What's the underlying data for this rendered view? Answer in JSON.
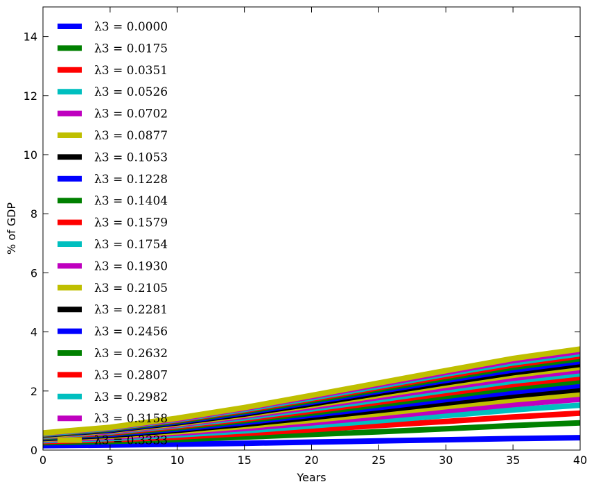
{
  "chart_data": {
    "type": "line",
    "xlabel": "Years",
    "ylabel": "% of GDP",
    "xlim": [
      0,
      40
    ],
    "ylim": [
      0,
      15
    ],
    "xticks": [
      "0",
      "5",
      "10",
      "15",
      "20",
      "25",
      "30",
      "35",
      "40"
    ],
    "yticks": [
      "0",
      "2",
      "4",
      "6",
      "8",
      "10",
      "12",
      "14"
    ],
    "legend_position": "upper-left",
    "grid": false,
    "x": [
      0,
      5,
      10,
      15,
      20,
      25,
      30,
      35,
      40
    ],
    "series": [
      {
        "name": "λ3 = 0.0000",
        "color": "#0000ff",
        "values": [
          0.15,
          0.17,
          0.2,
          0.23,
          0.27,
          0.31,
          0.35,
          0.39,
          0.42
        ]
      },
      {
        "name": "λ3 = 0.0175",
        "color": "#008000",
        "values": [
          0.25,
          0.29,
          0.36,
          0.44,
          0.53,
          0.62,
          0.72,
          0.83,
          0.92
        ]
      },
      {
        "name": "λ3 = 0.0351",
        "color": "#ff0000",
        "values": [
          0.29,
          0.35,
          0.44,
          0.56,
          0.69,
          0.83,
          0.97,
          1.12,
          1.25
        ]
      },
      {
        "name": "λ3 = 0.0526",
        "color": "#00bfbf",
        "values": [
          0.32,
          0.39,
          0.51,
          0.65,
          0.82,
          0.99,
          1.17,
          1.36,
          1.52
        ]
      },
      {
        "name": "λ3 = 0.0702",
        "color": "#bf00bf",
        "values": [
          0.35,
          0.43,
          0.57,
          0.73,
          0.92,
          1.12,
          1.33,
          1.54,
          1.72
        ]
      },
      {
        "name": "λ3 = 0.0877",
        "color": "#bfbf00",
        "values": [
          0.37,
          0.47,
          0.62,
          0.8,
          1.01,
          1.23,
          1.47,
          1.7,
          1.9
        ]
      },
      {
        "name": "λ3 = 0.1053",
        "color": "#000000",
        "values": [
          0.39,
          0.5,
          0.67,
          0.87,
          1.1,
          1.34,
          1.59,
          1.84,
          2.05
        ]
      },
      {
        "name": "λ3 = 0.1228",
        "color": "#0000ff",
        "values": [
          0.41,
          0.53,
          0.71,
          0.93,
          1.18,
          1.44,
          1.71,
          1.97,
          2.19
        ]
      },
      {
        "name": "λ3 = 0.1404",
        "color": "#008000",
        "values": [
          0.43,
          0.56,
          0.75,
          0.99,
          1.25,
          1.53,
          1.82,
          2.1,
          2.33
        ]
      },
      {
        "name": "λ3 = 0.1579",
        "color": "#ff0000",
        "values": [
          0.45,
          0.58,
          0.79,
          1.04,
          1.32,
          1.62,
          1.92,
          2.22,
          2.46
        ]
      },
      {
        "name": "λ3 = 0.1754",
        "color": "#00bfbf",
        "values": [
          0.46,
          0.61,
          0.83,
          1.09,
          1.39,
          1.7,
          2.02,
          2.33,
          2.58
        ]
      },
      {
        "name": "λ3 = 0.1930",
        "color": "#bf00bf",
        "values": [
          0.48,
          0.63,
          0.86,
          1.14,
          1.45,
          1.78,
          2.11,
          2.43,
          2.69
        ]
      },
      {
        "name": "λ3 = 0.2105",
        "color": "#bfbf00",
        "values": [
          0.49,
          0.65,
          0.89,
          1.18,
          1.51,
          1.85,
          2.2,
          2.53,
          2.8
        ]
      },
      {
        "name": "λ3 = 0.2281",
        "color": "#000000",
        "values": [
          0.51,
          0.67,
          0.92,
          1.22,
          1.56,
          1.92,
          2.28,
          2.62,
          2.9
        ]
      },
      {
        "name": "λ3 = 0.2456",
        "color": "#0000ff",
        "values": [
          0.52,
          0.69,
          0.95,
          1.26,
          1.62,
          1.99,
          2.36,
          2.71,
          3.0
        ]
      },
      {
        "name": "λ3 = 0.2632",
        "color": "#008000",
        "values": [
          0.53,
          0.71,
          0.98,
          1.3,
          1.67,
          2.05,
          2.43,
          2.8,
          3.09
        ]
      },
      {
        "name": "λ3 = 0.2807",
        "color": "#ff0000",
        "values": [
          0.54,
          0.73,
          1.01,
          1.34,
          1.72,
          2.11,
          2.5,
          2.88,
          3.18
        ]
      },
      {
        "name": "λ3 = 0.2982",
        "color": "#00bfbf",
        "values": [
          0.55,
          0.74,
          1.03,
          1.37,
          1.76,
          2.16,
          2.57,
          2.95,
          3.26
        ]
      },
      {
        "name": "λ3 = 0.3158",
        "color": "#bf00bf",
        "values": [
          0.57,
          0.76,
          1.05,
          1.41,
          1.81,
          2.22,
          2.63,
          3.03,
          3.34
        ]
      },
      {
        "name": "λ3 = 0.3333",
        "color": "#bfbf00",
        "values": [
          0.58,
          0.77,
          1.08,
          1.44,
          1.85,
          2.27,
          2.69,
          3.1,
          3.42
        ]
      }
    ]
  }
}
